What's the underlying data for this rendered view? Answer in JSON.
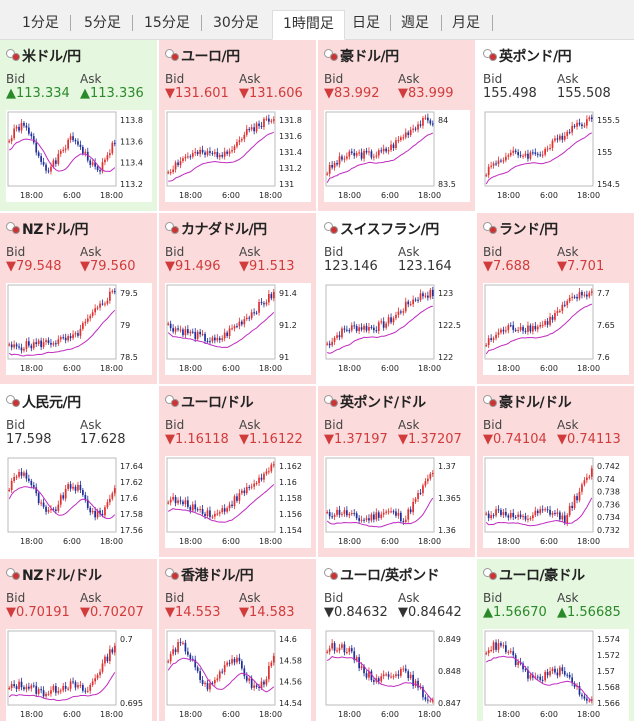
{
  "tabs": [
    {
      "label": "1分足",
      "active": false
    },
    {
      "label": "5分足",
      "active": false
    },
    {
      "label": "15分足",
      "active": false
    },
    {
      "label": "30分足",
      "active": false
    },
    {
      "label": "1時間足",
      "active": true
    },
    {
      "label": "日足",
      "active": false
    },
    {
      "label": "週足",
      "active": false
    },
    {
      "label": "月足",
      "active": false
    }
  ],
  "labels": {
    "bid": "Bid",
    "ask": "Ask"
  },
  "colors": {
    "up": "#2a8a2a",
    "down": "#d23b3b",
    "up_bg": "#e6f7e0",
    "down_bg": "#fbdbdb",
    "candle_up": "#e03030",
    "candle_down": "#1f2f9a",
    "ma": "#c02bc0"
  },
  "x_ticks": [
    "18:00",
    "6:00",
    "18:00"
  ],
  "pairs": [
    {
      "name": "米ドル/円",
      "trend": "up",
      "bid": "▲113.334",
      "ask": "▲113.336",
      "y_ticks": [
        "113.8",
        "113.6",
        "113.4",
        "113.2"
      ],
      "shape": "volatile_mid"
    },
    {
      "name": "ユーロ/円",
      "trend": "down",
      "bid": "▼131.601",
      "ask": "▼131.606",
      "y_ticks": [
        "131.8",
        "131.6",
        "131.4",
        "131.2",
        "131"
      ],
      "shape": "rise"
    },
    {
      "name": "豪ドル/円",
      "trend": "down",
      "bid": "▼83.992",
      "ask": "▼83.999",
      "y_ticks": [
        "84",
        "83.5"
      ],
      "shape": "rise"
    },
    {
      "name": "英ポンド/円",
      "trend": "neutral",
      "bid": "155.498",
      "ask": "155.508",
      "y_ticks": [
        "155.5",
        "155",
        "154.5"
      ],
      "shape": "rise"
    },
    {
      "name": "NZドル/円",
      "trend": "down",
      "bid": "▼79.548",
      "ask": "▼79.560",
      "y_ticks": [
        "79.5",
        "79",
        "78.5"
      ],
      "shape": "rise_late"
    },
    {
      "name": "カナダドル/円",
      "trend": "down",
      "bid": "▼91.496",
      "ask": "▼91.513",
      "y_ticks": [
        "91.4",
        "91.2",
        "91"
      ],
      "shape": "dip_rise"
    },
    {
      "name": "スイスフラン/円",
      "trend": "neutral",
      "bid": "123.146",
      "ask": "123.164",
      "y_ticks": [
        "123",
        "122.5",
        "122"
      ],
      "shape": "rise"
    },
    {
      "name": "ランド/円",
      "trend": "down",
      "bid": "▼7.688",
      "ask": "▼7.701",
      "y_ticks": [
        "7.7",
        "7.65",
        "7.6"
      ],
      "shape": "rise"
    },
    {
      "name": "人民元/円",
      "trend": "neutral",
      "bid": "17.598",
      "ask": "17.628",
      "y_ticks": [
        "17.64",
        "17.62",
        "17.6",
        "17.58",
        "17.56"
      ],
      "shape": "volatile_mid"
    },
    {
      "name": "ユーロ/ドル",
      "trend": "down",
      "bid": "▼1.16118",
      "ask": "▼1.16122",
      "y_ticks": [
        "1.162",
        "1.16",
        "1.158",
        "1.156",
        "1.154"
      ],
      "shape": "dip_rise"
    },
    {
      "name": "英ポンド/ドル",
      "trend": "down",
      "bid": "▼1.37197",
      "ask": "▼1.37207",
      "y_ticks": [
        "1.37",
        "1.365",
        "1.36"
      ],
      "shape": "flat_rise"
    },
    {
      "name": "豪ドル/ドル",
      "trend": "down",
      "bid": "▼0.74104",
      "ask": "▼0.74113",
      "y_ticks": [
        "0.742",
        "0.74",
        "0.738",
        "0.736",
        "0.734",
        "0.732"
      ],
      "shape": "flat_rise"
    },
    {
      "name": "NZドル/ドル",
      "trend": "down",
      "bid": "▼0.70191",
      "ask": "▼0.70207",
      "y_ticks": [
        "0.7",
        "0.695"
      ],
      "shape": "flat_rise"
    },
    {
      "name": "香港ドル/円",
      "trend": "down",
      "bid": "▼14.553",
      "ask": "▼14.583",
      "y_ticks": [
        "14.6",
        "14.58",
        "14.56",
        "14.54"
      ],
      "shape": "volatile_mid"
    },
    {
      "name": "ユーロ/英ポンド",
      "trend": "neutral",
      "bid": "▼0.84632",
      "ask": "▼0.84642",
      "y_ticks": [
        "0.849",
        "0.848",
        "0.847"
      ],
      "shape": "fall"
    },
    {
      "name": "ユーロ/豪ドル",
      "trend": "up",
      "bid": "▲1.56670",
      "ask": "▲1.56685",
      "y_ticks": [
        "1.574",
        "1.572",
        "1.57",
        "1.568",
        "1.566"
      ],
      "shape": "fall"
    }
  ]
}
